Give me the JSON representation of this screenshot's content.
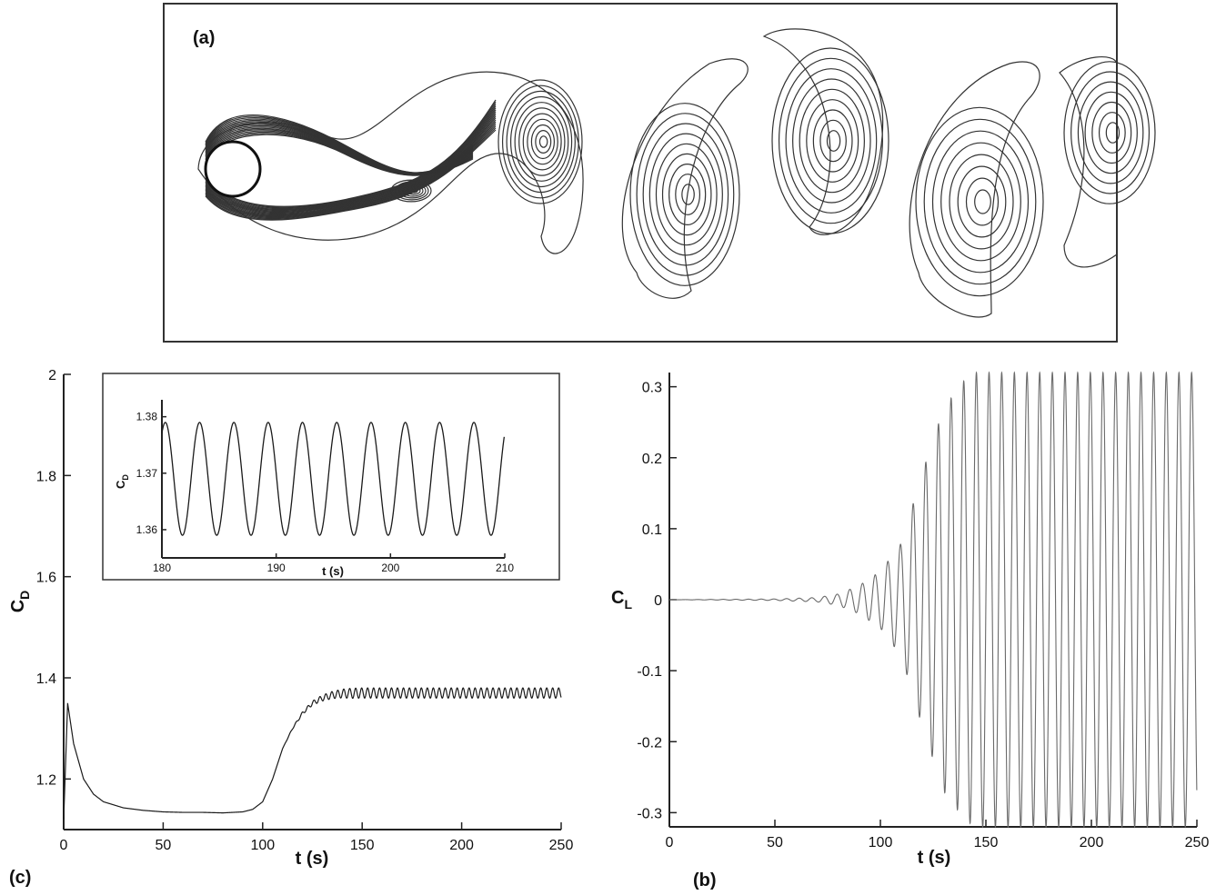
{
  "panels": {
    "a": {
      "label": "(a)"
    },
    "b": {
      "label": "(b)"
    },
    "c": {
      "label": "(c)"
    }
  },
  "colors": {
    "curve": "#1a1a1a",
    "lift_curve": "#6a6a6a",
    "axis": "#222222",
    "contour": "#333333"
  },
  "chart_data": [
    {
      "id": "c-main",
      "type": "line",
      "xlabel": "t (s)",
      "ylabel": "C",
      "ylabel_sub": "D",
      "xlim": [
        0,
        250
      ],
      "ylim": [
        1.1,
        2.0
      ],
      "xticks": [
        0,
        50,
        100,
        150,
        200,
        250
      ],
      "yticks": [
        1.2,
        1.4,
        1.6,
        1.8,
        2.0
      ],
      "ytick_labels": [
        "1.2",
        "1.4",
        "1.6",
        "1.8",
        "2"
      ],
      "grid": false,
      "x": [
        0,
        2,
        5,
        10,
        15,
        20,
        30,
        40,
        50,
        60,
        70,
        80,
        90,
        95,
        100,
        105,
        110,
        115,
        120,
        125,
        130,
        135,
        140,
        150,
        250
      ],
      "y": [
        1.12,
        1.35,
        1.27,
        1.2,
        1.17,
        1.155,
        1.143,
        1.138,
        1.135,
        1.134,
        1.134,
        1.133,
        1.135,
        1.14,
        1.155,
        1.2,
        1.26,
        1.3,
        1.33,
        1.35,
        1.36,
        1.366,
        1.369,
        1.37,
        1.37
      ],
      "oscillation": {
        "start": 110,
        "period": 3.0,
        "amplitude": 0.01,
        "mean": 1.369
      }
    },
    {
      "id": "c-inset",
      "type": "line",
      "xlabel": "t (s)",
      "ylabel": "C",
      "ylabel_sub": "D",
      "xlim": [
        180,
        210
      ],
      "ylim": [
        1.355,
        1.383
      ],
      "xticks": [
        180,
        190,
        200,
        210
      ],
      "yticks": [
        1.36,
        1.37,
        1.38
      ],
      "ytick_labels": [
        "1.36",
        "1.37",
        "1.38"
      ],
      "grid": false,
      "series": {
        "mean": 1.369,
        "amplitude": 0.01,
        "period": 3.0,
        "cycles": 10
      }
    },
    {
      "id": "b-main",
      "type": "line",
      "xlabel": "t (s)",
      "ylabel": "C",
      "ylabel_sub": "L",
      "xlim": [
        0,
        250
      ],
      "ylim": [
        -0.32,
        0.32
      ],
      "xticks": [
        0,
        50,
        100,
        150,
        200,
        250
      ],
      "yticks": [
        -0.3,
        -0.2,
        -0.1,
        0,
        0.1,
        0.2,
        0.3
      ],
      "ytick_labels": [
        "-0.3",
        "-0.2",
        "-0.1",
        "0",
        "0.1",
        "0.2",
        "0.3"
      ],
      "grid": false,
      "envelope": {
        "t": [
          0,
          50,
          70,
          80,
          90,
          100,
          110,
          120,
          130,
          140,
          145,
          250
        ],
        "amp": [
          0,
          0.001,
          0.003,
          0.008,
          0.02,
          0.04,
          0.08,
          0.18,
          0.27,
          0.31,
          0.32,
          0.32
        ]
      },
      "period": 6.0
    }
  ]
}
